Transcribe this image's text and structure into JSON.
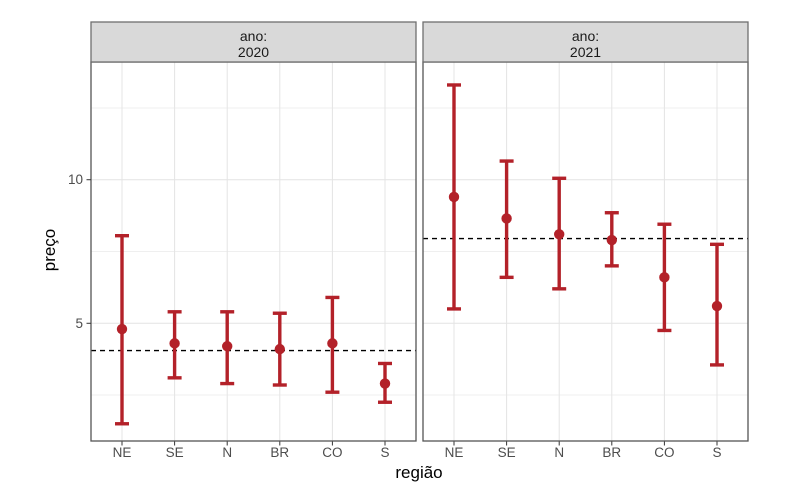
{
  "chart_data": {
    "type": "pointrange",
    "title": "",
    "xlabel": "região",
    "ylabel": "preço",
    "facet_title_prefix": "ano:",
    "categories": [
      "NE",
      "SE",
      "N",
      "BR",
      "CO",
      "S"
    ],
    "ylim": [
      0.9,
      14.1
    ],
    "y_major_breaks": [
      5,
      10
    ],
    "y_minor_breaks": [
      2.5,
      7.5,
      12.5
    ],
    "grid": true,
    "legend": "none",
    "facets": [
      {
        "facet_value": "2020",
        "ref_line": 4.05,
        "points": [
          {
            "x": "NE",
            "y": 4.8,
            "ymin": 1.5,
            "ymax": 8.05
          },
          {
            "x": "SE",
            "y": 4.3,
            "ymin": 3.1,
            "ymax": 5.4
          },
          {
            "x": "N",
            "y": 4.2,
            "ymin": 2.9,
            "ymax": 5.4
          },
          {
            "x": "BR",
            "y": 4.1,
            "ymin": 2.85,
            "ymax": 5.35
          },
          {
            "x": "CO",
            "y": 4.3,
            "ymin": 2.6,
            "ymax": 5.9
          },
          {
            "x": "S",
            "y": 2.9,
            "ymin": 2.25,
            "ymax": 3.6
          }
        ]
      },
      {
        "facet_value": "2021",
        "ref_line": 7.95,
        "points": [
          {
            "x": "NE",
            "y": 9.4,
            "ymin": 5.5,
            "ymax": 13.3
          },
          {
            "x": "SE",
            "y": 8.65,
            "ymin": 6.6,
            "ymax": 10.65
          },
          {
            "x": "N",
            "y": 8.1,
            "ymin": 6.2,
            "ymax": 10.05
          },
          {
            "x": "BR",
            "y": 7.9,
            "ymin": 7.0,
            "ymax": 8.85
          },
          {
            "x": "CO",
            "y": 6.6,
            "ymin": 4.75,
            "ymax": 8.45
          },
          {
            "x": "S",
            "y": 5.6,
            "ymin": 3.55,
            "ymax": 7.75
          }
        ]
      }
    ],
    "colors": {
      "point_color": "#b32129",
      "ref_line_color": "#000000",
      "strip_fill": "#d9d9d9",
      "strip_border": "#6f6f6f",
      "panel_border": "#555555",
      "grid_major": "#e4e4e4",
      "grid_minor": "#efefef",
      "tick_color": "#333333",
      "tick_label_color": "#4d4d4d",
      "strip_text_color": "#1a1a1a"
    }
  }
}
